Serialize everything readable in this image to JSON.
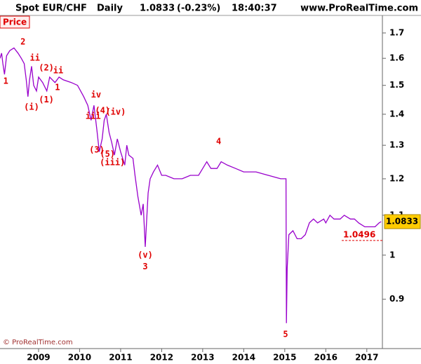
{
  "chart_data": {
    "type": "line",
    "title": "Spot EUR/CHF",
    "period": "Daily",
    "last": 1.0833,
    "change": "(-0.23%)",
    "time": "18:40:37",
    "source": "www.ProRealTime.com",
    "y_label": "Price",
    "copyright": "© ProRealTime.com",
    "color": "#9900cc",
    "log_scale": true,
    "xlim": [
      2008.06,
      2017.38
    ],
    "xticks": [
      2009,
      2010,
      2011,
      2012,
      2013,
      2014,
      2015,
      2016,
      2017
    ],
    "ylim": [
      0.8,
      1.72
    ],
    "yticks": [
      0.9,
      1,
      1.1,
      1.2,
      1.3,
      1.4,
      1.5,
      1.6,
      1.7
    ],
    "reference_line": 1.0496,
    "x": [
      2008.06,
      2008.1,
      2008.13,
      2008.17,
      2008.22,
      2008.3,
      2008.4,
      2008.5,
      2008.58,
      2008.65,
      2008.7,
      2008.74,
      2008.78,
      2008.83,
      2008.88,
      2008.95,
      2009.0,
      2009.1,
      2009.2,
      2009.27,
      2009.4,
      2009.5,
      2009.6,
      2009.8,
      2009.95,
      2010.1,
      2010.2,
      2010.28,
      2010.35,
      2010.42,
      2010.48,
      2010.55,
      2010.6,
      2010.65,
      2010.72,
      2010.78,
      2010.85,
      2010.92,
      2011.0,
      2011.1,
      2011.15,
      2011.2,
      2011.3,
      2011.35,
      2011.42,
      2011.5,
      2011.55,
      2011.6,
      2011.63,
      2011.67,
      2011.72,
      2011.8,
      2011.9,
      2012.0,
      2012.1,
      2012.3,
      2012.5,
      2012.7,
      2012.9,
      2013.0,
      2013.1,
      2013.2,
      2013.35,
      2013.45,
      2013.6,
      2013.8,
      2014.0,
      2014.3,
      2014.6,
      2014.9,
      2015.03,
      2015.04,
      2015.06,
      2015.1,
      2015.2,
      2015.3,
      2015.4,
      2015.5,
      2015.6,
      2015.7,
      2015.8,
      2015.95,
      2016.0,
      2016.1,
      2016.2,
      2016.35,
      2016.45,
      2016.6,
      2016.7,
      2016.8,
      2016.95,
      2017.1,
      2017.2,
      2017.3,
      2017.35
    ],
    "values": [
      1.6,
      1.62,
      1.58,
      1.54,
      1.61,
      1.63,
      1.64,
      1.62,
      1.6,
      1.58,
      1.52,
      1.46,
      1.52,
      1.57,
      1.5,
      1.48,
      1.53,
      1.51,
      1.48,
      1.53,
      1.51,
      1.53,
      1.52,
      1.51,
      1.5,
      1.46,
      1.43,
      1.38,
      1.43,
      1.35,
      1.28,
      1.32,
      1.38,
      1.4,
      1.34,
      1.31,
      1.27,
      1.32,
      1.28,
      1.24,
      1.3,
      1.27,
      1.26,
      1.21,
      1.15,
      1.1,
      1.13,
      1.02,
      1.08,
      1.16,
      1.2,
      1.22,
      1.24,
      1.21,
      1.21,
      1.2,
      1.2,
      1.21,
      1.21,
      1.23,
      1.25,
      1.23,
      1.23,
      1.25,
      1.24,
      1.23,
      1.22,
      1.22,
      1.21,
      1.2,
      1.2,
      0.85,
      0.97,
      1.05,
      1.06,
      1.04,
      1.04,
      1.05,
      1.08,
      1.09,
      1.08,
      1.09,
      1.08,
      1.1,
      1.09,
      1.09,
      1.1,
      1.09,
      1.09,
      1.08,
      1.07,
      1.07,
      1.07,
      1.08,
      1.0833
    ],
    "annotations": [
      {
        "text": "1",
        "x": 2008.2,
        "y": 1.514
      },
      {
        "text": "2",
        "x": 2008.62,
        "y": 1.663
      },
      {
        "text": "ii",
        "x": 2008.91,
        "y": 1.6
      },
      {
        "text": "(2)",
        "x": 2009.19,
        "y": 1.563
      },
      {
        "text": "ii",
        "x": 2009.48,
        "y": 1.553
      },
      {
        "text": "1",
        "x": 2009.46,
        "y": 1.492
      },
      {
        "text": "(i)",
        "x": 2008.83,
        "y": 1.423
      },
      {
        "text": "(1)",
        "x": 2009.19,
        "y": 1.449
      },
      {
        "text": "iv",
        "x": 2010.4,
        "y": 1.466
      },
      {
        "text": "(4)",
        "x": 2010.56,
        "y": 1.411
      },
      {
        "text": "iii",
        "x": 2010.33,
        "y": 1.393
      },
      {
        "text": "(iv)",
        "x": 2010.88,
        "y": 1.407
      },
      {
        "text": "(3)",
        "x": 2010.42,
        "y": 1.285
      },
      {
        "text": "(5)",
        "x": 2010.68,
        "y": 1.272
      },
      {
        "text": "(iii)",
        "x": 2010.8,
        "y": 1.247
      },
      {
        "text": "4",
        "x": 2013.39,
        "y": 1.311
      },
      {
        "text": "(v)",
        "x": 2011.6,
        "y": 1.0
      },
      {
        "text": "3",
        "x": 2011.6,
        "y": 0.972
      },
      {
        "text": "5",
        "x": 2015.02,
        "y": 0.827
      }
    ]
  }
}
